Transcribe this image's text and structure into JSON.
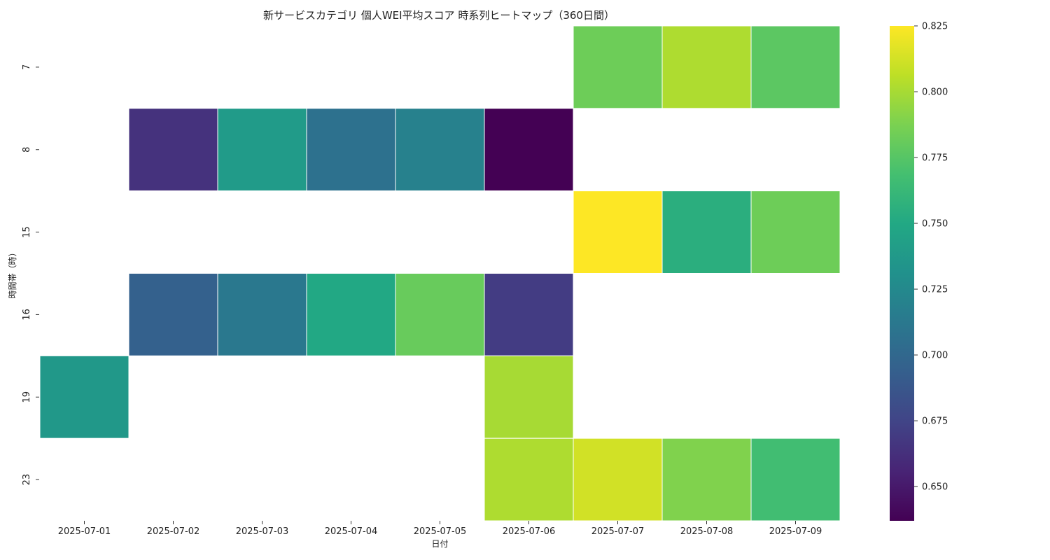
{
  "chart_data": {
    "type": "heatmap",
    "title": "新サービスカテゴリ 個人WEI平均スコア 時系列ヒートマップ（360日間）",
    "xlabel": "日付",
    "ylabel": "時間帯（時）",
    "x_categories": [
      "2025-07-01",
      "2025-07-02",
      "2025-07-03",
      "2025-07-04",
      "2025-07-05",
      "2025-07-06",
      "2025-07-07",
      "2025-07-08",
      "2025-07-09"
    ],
    "y_categories": [
      "7",
      "8",
      "15",
      "16",
      "19",
      "23"
    ],
    "values": [
      [
        null,
        null,
        null,
        null,
        null,
        null,
        0.783,
        0.802,
        0.777
      ],
      [
        null,
        0.664,
        0.739,
        0.707,
        0.719,
        0.637,
        null,
        null,
        null
      ],
      [
        null,
        null,
        null,
        null,
        null,
        null,
        0.825,
        0.755,
        0.783
      ],
      [
        null,
        0.695,
        0.712,
        0.75,
        0.781,
        0.67,
        null,
        null,
        null
      ],
      [
        0.737,
        null,
        null,
        null,
        null,
        0.8,
        null,
        null,
        null
      ],
      [
        null,
        null,
        null,
        null,
        null,
        0.802,
        0.812,
        0.789,
        0.767
      ]
    ],
    "colorbar": {
      "colormap": "viridis",
      "vmin": 0.637,
      "vmax": 0.825,
      "ticks": [
        "0.650",
        "0.675",
        "0.700",
        "0.725",
        "0.750",
        "0.775",
        "0.800",
        "0.825"
      ]
    },
    "grid": false
  }
}
